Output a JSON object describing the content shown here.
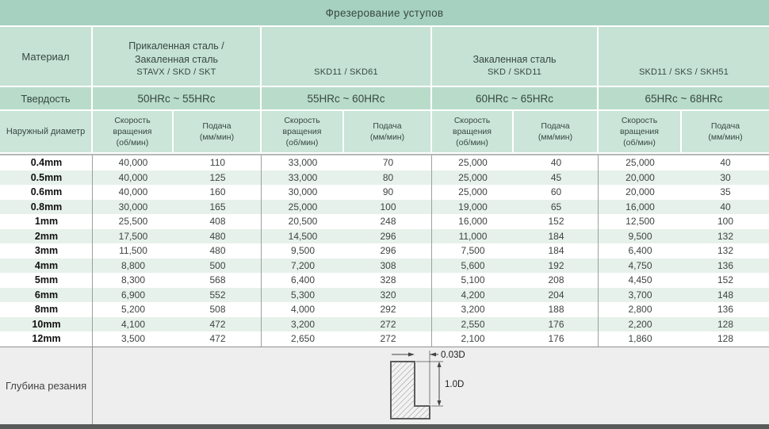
{
  "title": "Фрезерование уступов",
  "table": {
    "material_label": "Материал",
    "hardness_label": "Твердость",
    "diameter_label": "Наружный диаметр",
    "speed_header": [
      "Скорость",
      "вращения",
      "(об/мин)"
    ],
    "feed_header": [
      "Подача",
      "(мм/мин)"
    ],
    "groups": [
      {
        "material_lines": [
          "Прикаленная сталь /",
          "Закаленная сталь",
          "STAVX / SKD / SKT"
        ],
        "hardness": "50HRc ~ 55HRc"
      },
      {
        "material_lines": [
          "SKD11 / SKD61"
        ],
        "hardness": "55HRc ~ 60HRc"
      },
      {
        "material_lines": [
          "Закаленная сталь",
          "SKD / SKD11"
        ],
        "hardness": "60HRc ~ 65HRc"
      },
      {
        "material_lines": [
          "SKD11 / SKS / SKH51"
        ],
        "hardness": "65HRc ~ 68HRc"
      }
    ],
    "rows": [
      {
        "diameter": "0.4mm",
        "values": [
          "40,000",
          "110",
          "33,000",
          "70",
          "25,000",
          "40",
          "25,000",
          "40"
        ]
      },
      {
        "diameter": "0.5mm",
        "values": [
          "40,000",
          "125",
          "33,000",
          "80",
          "25,000",
          "45",
          "20,000",
          "30"
        ]
      },
      {
        "diameter": "0.6mm",
        "values": [
          "40,000",
          "160",
          "30,000",
          "90",
          "25,000",
          "60",
          "20,000",
          "35"
        ]
      },
      {
        "diameter": "0.8mm",
        "values": [
          "30,000",
          "165",
          "25,000",
          "100",
          "19,000",
          "65",
          "16,000",
          "40"
        ]
      },
      {
        "diameter": "1mm",
        "values": [
          "25,500",
          "408",
          "20,500",
          "248",
          "16,000",
          "152",
          "12,500",
          "100"
        ]
      },
      {
        "diameter": "2mm",
        "values": [
          "17,500",
          "480",
          "14,500",
          "296",
          "11,000",
          "184",
          "9,500",
          "132"
        ]
      },
      {
        "diameter": "3mm",
        "values": [
          "11,500",
          "480",
          "9,500",
          "296",
          "7,500",
          "184",
          "6,400",
          "132"
        ]
      },
      {
        "diameter": "4mm",
        "values": [
          "8,800",
          "500",
          "7,200",
          "308",
          "5,600",
          "192",
          "4,750",
          "136"
        ]
      },
      {
        "diameter": "5mm",
        "values": [
          "8,300",
          "568",
          "6,400",
          "328",
          "5,100",
          "208",
          "4,450",
          "152"
        ]
      },
      {
        "diameter": "6mm",
        "values": [
          "6,900",
          "552",
          "5,300",
          "320",
          "4,200",
          "204",
          "3,700",
          "148"
        ]
      },
      {
        "diameter": "8mm",
        "values": [
          "5,200",
          "508",
          "4,000",
          "292",
          "3,200",
          "188",
          "2,800",
          "136"
        ]
      },
      {
        "diameter": "10mm",
        "values": [
          "4,100",
          "472",
          "3,200",
          "272",
          "2,550",
          "176",
          "2,200",
          "128"
        ]
      },
      {
        "diameter": "12mm",
        "values": [
          "3,500",
          "472",
          "2,650",
          "272",
          "2,100",
          "176",
          "1,860",
          "128"
        ]
      }
    ]
  },
  "footer": {
    "depth_label": "Глубина резания",
    "dim_step": "0.03D",
    "dim_depth": "1.0D"
  },
  "colors": {
    "title_band": "#a6d1c1",
    "header_band": "#c6e2d5",
    "hardness_band": "#b9dcca",
    "subheader_band": "#cbe5d8",
    "row_stripe": "#e7f1ec",
    "footer_bg": "#eeeeee",
    "bottom_bar": "#595a5a",
    "header_text": "#374842",
    "data_text": "#3e4440"
  }
}
